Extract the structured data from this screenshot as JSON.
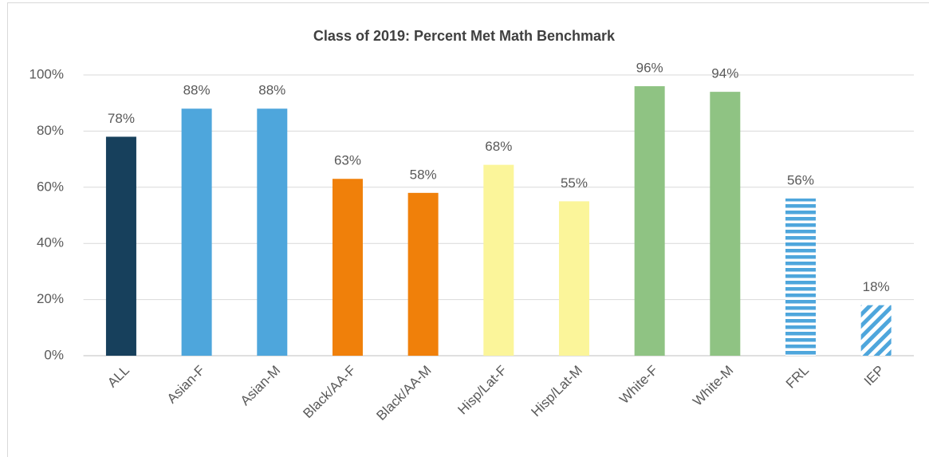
{
  "chart_data": {
    "type": "bar",
    "title": "Class of 2019: Percent Met Math Benchmark",
    "categories": [
      "ALL",
      "Asian-F",
      "Asian-M",
      "Black/AA-F",
      "Black/AA-M",
      "Hisp/Lat-F",
      "Hisp/Lat-M",
      "White-F",
      "White-M",
      "FRL",
      "IEP"
    ],
    "values": [
      78,
      88,
      88,
      63,
      58,
      68,
      55,
      96,
      94,
      56,
      18
    ],
    "value_labels": [
      "78%",
      "88%",
      "88%",
      "63%",
      "58%",
      "68%",
      "55%",
      "96%",
      "94%",
      "56%",
      "18%"
    ],
    "colors": [
      "#17405c",
      "#4ea6dc",
      "#4ea6dc",
      "#f0800a",
      "#f0800a",
      "#fbf59a",
      "#fbf59a",
      "#8fc383",
      "#8fc383",
      "#4ea6dc",
      "#4ea6dc"
    ],
    "patterns": [
      null,
      null,
      null,
      null,
      null,
      null,
      null,
      null,
      null,
      "horizontal",
      "diagonal"
    ],
    "ylim": [
      0,
      100
    ],
    "yticks": [
      {
        "value": 0,
        "label": "0%"
      },
      {
        "value": 20,
        "label": "20%"
      },
      {
        "value": 40,
        "label": "40%"
      },
      {
        "value": 60,
        "label": "60%"
      },
      {
        "value": 80,
        "label": "80%"
      },
      {
        "value": 100,
        "label": "100%"
      }
    ],
    "grid": true
  }
}
